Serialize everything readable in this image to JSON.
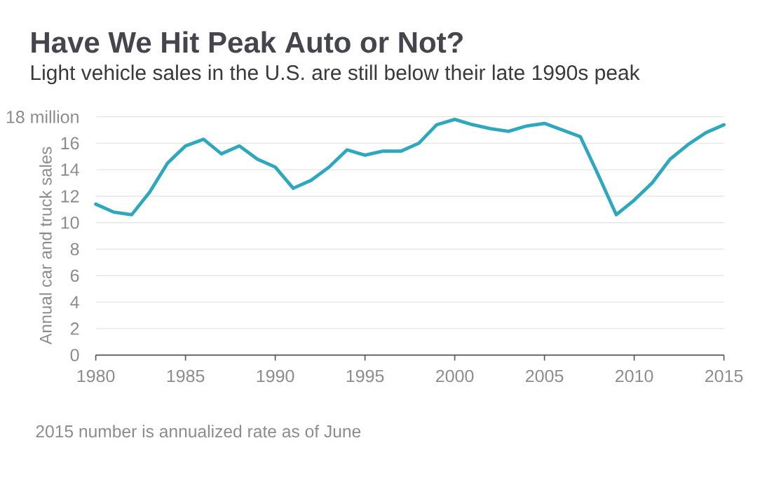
{
  "chart_data": {
    "type": "line",
    "title": "Have We Hit Peak Auto or Not?",
    "subtitle": "Light vehicle sales in the U.S. are still below their late 1990s peak",
    "ylabel": "Annual car and truck sales",
    "annotations": [
      "2015 number is annualized rate as of June"
    ],
    "x": [
      1980,
      1981,
      1982,
      1983,
      1984,
      1985,
      1986,
      1987,
      1988,
      1989,
      1990,
      1991,
      1992,
      1993,
      1994,
      1995,
      1996,
      1997,
      1998,
      1999,
      2000,
      2001,
      2002,
      2003,
      2004,
      2005,
      2006,
      2007,
      2008,
      2009,
      2010,
      2011,
      2012,
      2013,
      2014,
      2015
    ],
    "values": [
      11.4,
      10.8,
      10.6,
      12.3,
      14.5,
      15.8,
      16.3,
      15.2,
      15.8,
      14.8,
      14.2,
      12.6,
      13.2,
      14.2,
      15.5,
      15.1,
      15.4,
      15.4,
      16.0,
      17.4,
      17.8,
      17.4,
      17.1,
      16.9,
      17.3,
      17.5,
      17.0,
      16.5,
      13.6,
      10.6,
      11.7,
      13.0,
      14.8,
      15.9,
      16.8,
      17.4
    ],
    "color": "#2fa8be",
    "xlim": [
      1980,
      2015
    ],
    "ylim": [
      0,
      18
    ],
    "xticks": [
      1980,
      1985,
      1990,
      1995,
      2000,
      2005,
      2010,
      2015
    ],
    "yticks": [
      0,
      2,
      4,
      6,
      8,
      10,
      12,
      14,
      16,
      {
        "value": 18,
        "label": "18 million"
      }
    ],
    "grid": "y"
  }
}
